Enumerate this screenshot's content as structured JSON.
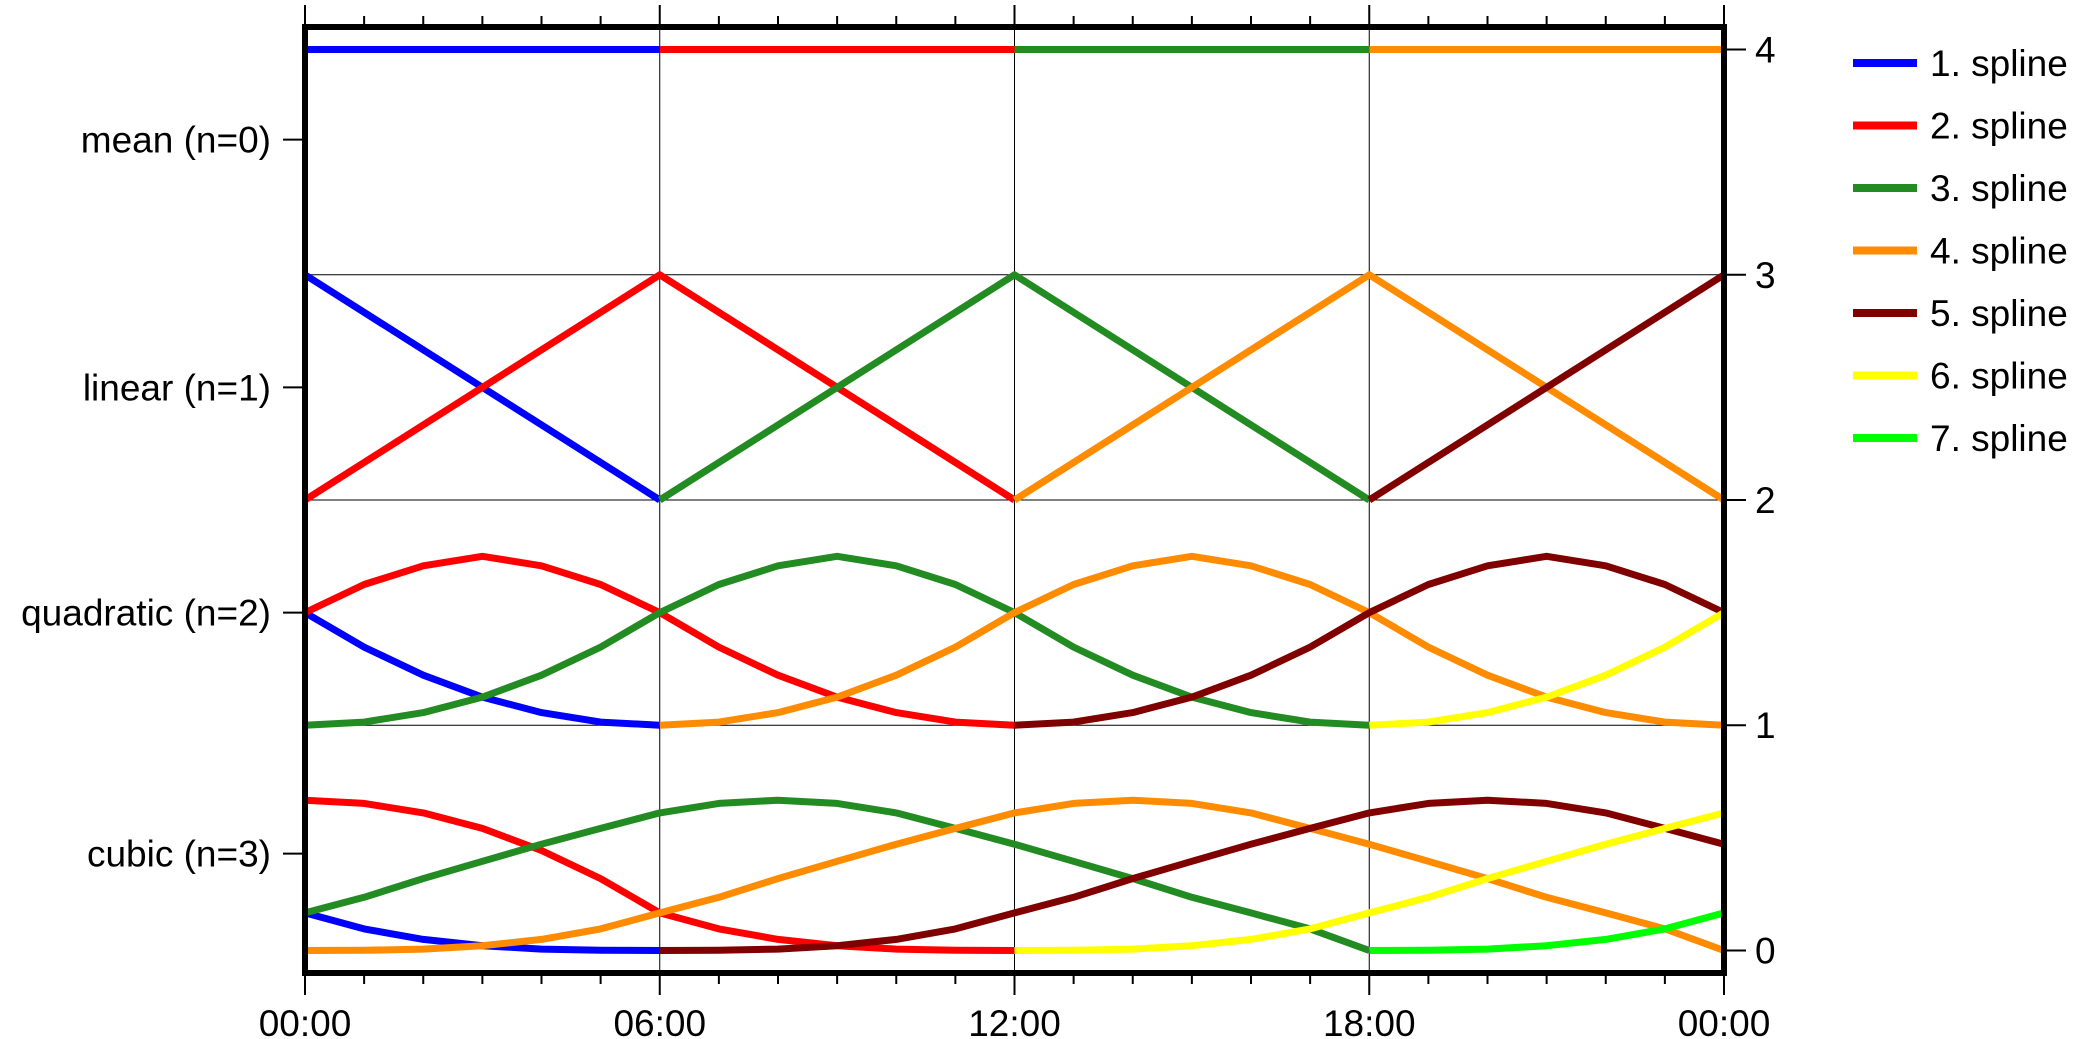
{
  "chart_data": {
    "type": "line",
    "title": "",
    "xlabel": "",
    "ylabel": "",
    "x_ticks": [
      "00:00",
      "06:00",
      "12:00",
      "18:00",
      "00:00"
    ],
    "x_range_hours": [
      0,
      24
    ],
    "y_range": [
      -0.1,
      4.1
    ],
    "right_y_ticks": [
      "0",
      "1",
      "2",
      "3",
      "4"
    ],
    "left_y_ticks": [
      {
        "label": "mean (n=0)",
        "value": 3.6
      },
      {
        "label": "linear (n=1)",
        "value": 2.5
      },
      {
        "label": "quadratic (n=2)",
        "value": 1.5
      },
      {
        "label": "cubic (n=3)",
        "value": 0.43
      }
    ],
    "grid": true,
    "legend_placement": "outside-right",
    "colors": {
      "spline1": "#0000ff",
      "spline2": "#ff0000",
      "spline3": "#228b22",
      "spline4": "#ff8c00",
      "spline5": "#800000",
      "spline6": "#ffff00",
      "spline7": "#00ff00"
    },
    "series": [
      {
        "name": "1. spline",
        "color": "#0000ff",
        "mean": [
          {
            "x": [
              0,
              6
            ],
            "y": [
              4,
              4
            ]
          }
        ],
        "linear": [
          {
            "x": [
              0,
              6
            ],
            "y": [
              3,
              2
            ]
          }
        ],
        "quadratic": [
          {
            "x": [
              0,
              1,
              2,
              3,
              4,
              5,
              6
            ],
            "y": [
              1.5,
              1.347,
              1.222,
              1.125,
              1.056,
              1.014,
              1.0
            ]
          }
        ],
        "cubic": [
          {
            "x": [
              0,
              1,
              2,
              3,
              4,
              5,
              6
            ],
            "y": [
              0.167,
              0.096,
              0.049,
              0.021,
              0.006,
              0.001,
              0.0
            ]
          }
        ]
      },
      {
        "name": "2. spline",
        "color": "#ff0000",
        "mean": [
          {
            "x": [
              6,
              12
            ],
            "y": [
              4,
              4
            ]
          }
        ],
        "linear": [
          {
            "x": [
              0,
              6,
              12
            ],
            "y": [
              2,
              3,
              2
            ]
          }
        ],
        "quadratic": [
          {
            "x": [
              0,
              1,
              2,
              3,
              4,
              5,
              6,
              7,
              8,
              9,
              10,
              11,
              12
            ],
            "y": [
              1.5,
              1.625,
              1.708,
              1.75,
              1.708,
              1.625,
              1.5,
              1.347,
              1.222,
              1.125,
              1.056,
              1.014,
              1.0
            ]
          }
        ],
        "cubic": [
          {
            "x": [
              0,
              1,
              2,
              3,
              4,
              5,
              6,
              7,
              8,
              9,
              10,
              11,
              12
            ],
            "y": [
              0.667,
              0.653,
              0.611,
              0.542,
              0.444,
              0.319,
              0.167,
              0.096,
              0.049,
              0.021,
              0.006,
              0.001,
              0.0
            ]
          }
        ]
      },
      {
        "name": "3. spline",
        "color": "#228b22",
        "mean": [
          {
            "x": [
              12,
              18
            ],
            "y": [
              4,
              4
            ]
          }
        ],
        "linear": [
          {
            "x": [
              6,
              12,
              18
            ],
            "y": [
              2,
              3,
              2
            ]
          }
        ],
        "quadratic": [
          {
            "x": [
              0,
              1,
              2,
              3,
              4,
              5,
              6,
              7,
              8,
              9,
              10,
              11,
              12,
              13,
              14,
              15,
              16,
              17,
              18
            ],
            "y": [
              1.0,
              1.014,
              1.056,
              1.125,
              1.222,
              1.347,
              1.5,
              1.625,
              1.708,
              1.75,
              1.708,
              1.625,
              1.5,
              1.347,
              1.222,
              1.125,
              1.056,
              1.014,
              1.0
            ]
          }
        ],
        "cubic": [
          {
            "x": [
              0,
              1,
              2,
              3,
              4,
              5,
              6,
              7,
              8,
              9,
              10,
              11,
              12,
              13,
              14,
              15,
              16,
              17,
              18
            ],
            "y": [
              0.167,
              0.236,
              0.319,
              0.396,
              0.472,
              0.542,
              0.611,
              0.653,
              0.667,
              0.653,
              0.611,
              0.542,
              0.472,
              0.396,
              0.319,
              0.236,
              0.167,
              0.096,
              0.0
            ]
          }
        ]
      },
      {
        "name": "4. spline",
        "color": "#ff8c00",
        "mean": [
          {
            "x": [
              18,
              24
            ],
            "y": [
              4,
              4
            ]
          }
        ],
        "linear": [
          {
            "x": [
              12,
              18,
              24
            ],
            "y": [
              2,
              3,
              2
            ]
          }
        ],
        "quadratic": [
          {
            "x": [
              6,
              7,
              8,
              9,
              10,
              11,
              12,
              13,
              14,
              15,
              16,
              17,
              18,
              19,
              20,
              21,
              22,
              23,
              24
            ],
            "y": [
              1.0,
              1.014,
              1.056,
              1.125,
              1.222,
              1.347,
              1.5,
              1.625,
              1.708,
              1.75,
              1.708,
              1.625,
              1.5,
              1.347,
              1.222,
              1.125,
              1.056,
              1.014,
              1.0
            ]
          }
        ],
        "cubic": [
          {
            "x": [
              0,
              1,
              2,
              3,
              4,
              5,
              6,
              7,
              8,
              9,
              10,
              11,
              12,
              13,
              14,
              15,
              16,
              17,
              18,
              19,
              20,
              21,
              22,
              23,
              24
            ],
            "y": [
              0.0,
              0.001,
              0.006,
              0.021,
              0.049,
              0.096,
              0.167,
              0.236,
              0.319,
              0.396,
              0.472,
              0.542,
              0.611,
              0.653,
              0.667,
              0.653,
              0.611,
              0.542,
              0.472,
              0.396,
              0.319,
              0.236,
              0.167,
              0.096,
              0.0
            ]
          }
        ]
      },
      {
        "name": "5. spline",
        "color": "#800000",
        "linear": [
          {
            "x": [
              18,
              24
            ],
            "y": [
              2,
              3
            ]
          }
        ],
        "quadratic": [
          {
            "x": [
              12,
              13,
              14,
              15,
              16,
              17,
              18,
              19,
              20,
              21,
              22,
              23,
              24
            ],
            "y": [
              1.0,
              1.014,
              1.056,
              1.125,
              1.222,
              1.347,
              1.5,
              1.625,
              1.708,
              1.75,
              1.708,
              1.625,
              1.5
            ]
          }
        ],
        "cubic": [
          {
            "x": [
              6,
              7,
              8,
              9,
              10,
              11,
              12,
              13,
              14,
              15,
              16,
              17,
              18,
              19,
              20,
              21,
              22,
              23,
              24
            ],
            "y": [
              0.0,
              0.001,
              0.006,
              0.021,
              0.049,
              0.096,
              0.167,
              0.236,
              0.319,
              0.396,
              0.472,
              0.542,
              0.611,
              0.653,
              0.667,
              0.653,
              0.611,
              0.542,
              0.472
            ]
          }
        ]
      },
      {
        "name": "6. spline",
        "color": "#ffff00",
        "quadratic": [
          {
            "x": [
              18,
              19,
              20,
              21,
              22,
              23,
              24
            ],
            "y": [
              1.0,
              1.014,
              1.056,
              1.125,
              1.222,
              1.347,
              1.5
            ]
          }
        ],
        "cubic": [
          {
            "x": [
              12,
              13,
              14,
              15,
              16,
              17,
              18,
              19,
              20,
              21,
              22,
              23,
              24
            ],
            "y": [
              0.0,
              0.001,
              0.006,
              0.021,
              0.049,
              0.096,
              0.167,
              0.236,
              0.319,
              0.396,
              0.472,
              0.542,
              0.611
            ]
          }
        ]
      },
      {
        "name": "7. spline",
        "color": "#00ff00",
        "cubic": [
          {
            "x": [
              18,
              19,
              20,
              21,
              22,
              23,
              24
            ],
            "y": [
              0.0,
              0.001,
              0.006,
              0.021,
              0.049,
              0.096,
              0.167
            ]
          }
        ]
      }
    ]
  }
}
